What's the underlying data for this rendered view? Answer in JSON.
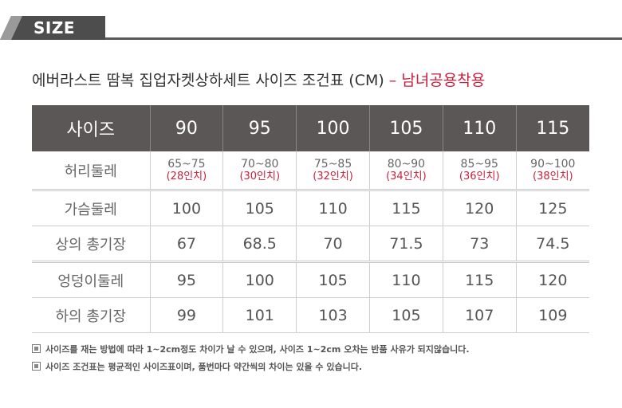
{
  "header": {
    "section_label": "SIZE"
  },
  "title": {
    "main": "에버라스트 땀복 집업자켓상하세트 사이즈 조건표 (CM)",
    "accent": " – 남녀공용착용"
  },
  "table": {
    "header_label": "사이즈",
    "sizes": [
      "90",
      "95",
      "100",
      "105",
      "110",
      "115"
    ],
    "waist": {
      "label": "허리둘레",
      "cm": [
        "65~75",
        "70~80",
        "75~85",
        "80~90",
        "85~95",
        "90~100"
      ],
      "inch": [
        "(28인치)",
        "(30인치)",
        "(32인치)",
        "(34인치)",
        "(36인치)",
        "(38인치)"
      ]
    },
    "rows": [
      {
        "label": "가슴둘레",
        "values": [
          "100",
          "105",
          "110",
          "115",
          "120",
          "125"
        ]
      },
      {
        "label": "상의 총기장",
        "values": [
          "67",
          "68.5",
          "70",
          "71.5",
          "73",
          "74.5"
        ]
      },
      {
        "label": "엉덩이둘레",
        "values": [
          "95",
          "100",
          "105",
          "110",
          "115",
          "120"
        ]
      },
      {
        "label": "하의 총기장",
        "values": [
          "99",
          "101",
          "103",
          "105",
          "107",
          "109"
        ]
      }
    ]
  },
  "notes": [
    "사이즈를 재는 방법에 따라 1~2cm정도 차이가 날 수 있으며, 사이즈 1~2cm 오차는 반품 사유가 되지않습니다.",
    "사이즈 조건표는 평균적인 사이즈표이며, 품번마다 약간씩의 차이는 있을 수 있습니다."
  ],
  "colors": {
    "accent": "#cc1e3c",
    "header_bg": "#5b5757",
    "tab_bg": "#4d4d4d"
  }
}
